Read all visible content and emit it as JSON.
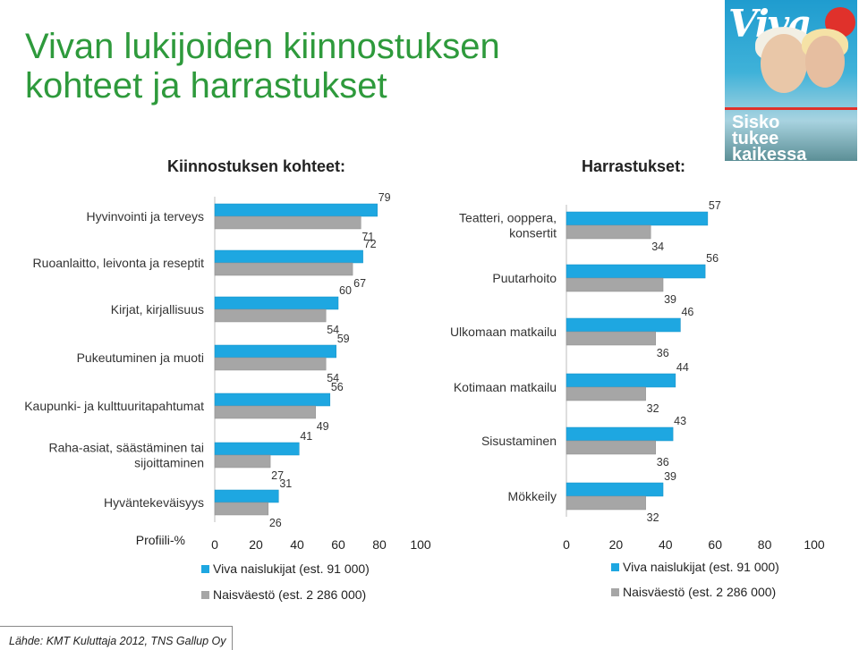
{
  "title": "Vivan lukijoiden kiinnostuksen kohteet ja harrastukset",
  "subheads": {
    "left": "Kiinnostuksen kohteet:",
    "right": "Harrastukset:"
  },
  "axis_label": "Profiili-%",
  "source": "Lähde: KMT Kuluttaja 2012, TNS Gallup Oy",
  "colors": {
    "viva": "#1ea7e1",
    "naisvaesto": "#a6a6a6",
    "title": "#2e9a3c"
  },
  "cover": {
    "masthead": "Viva",
    "headline": "Sisko tukee kaikessa"
  },
  "chart_data": [
    {
      "type": "bar",
      "orientation": "horizontal",
      "title": "Kiinnostuksen kohteet:",
      "xlabel": "Profiili-%",
      "xlim": [
        0,
        100
      ],
      "xticks": [
        0,
        20,
        40,
        60,
        80,
        100
      ],
      "categories": [
        [
          "Hyvinvointi ja terveys"
        ],
        [
          "Ruoanlaitto, leivonta ja reseptit"
        ],
        [
          "Kirjat, kirjallisuus"
        ],
        [
          "Pukeutuminen ja muoti"
        ],
        [
          "Kaupunki- ja kulttuuritapahtumat"
        ],
        [
          "Raha-asiat, säästäminen tai",
          "sijoittaminen"
        ],
        [
          "Hyväntekeväisyys"
        ]
      ],
      "series": [
        {
          "name": "Viva naislukijat (est. 91 000)",
          "values": [
            79,
            72,
            60,
            59,
            56,
            41,
            31
          ]
        },
        {
          "name": "Naisväestö (est. 2 286 000)",
          "values": [
            71,
            67,
            54,
            54,
            49,
            27,
            26
          ]
        }
      ],
      "legend": "bottom"
    },
    {
      "type": "bar",
      "orientation": "horizontal",
      "title": "Harrastukset:",
      "xlim": [
        0,
        100
      ],
      "xticks": [
        0,
        20,
        40,
        60,
        80,
        100
      ],
      "categories": [
        [
          "Teatteri, ooppera,",
          "konsertit"
        ],
        [
          "Puutarhoito"
        ],
        [
          "Ulkomaan matkailu"
        ],
        [
          "Kotimaan matkailu"
        ],
        [
          "Sisustaminen"
        ],
        [
          "Mökkeily"
        ]
      ],
      "series": [
        {
          "name": "Viva naislukijat (est. 91 000)",
          "values": [
            57,
            56,
            46,
            44,
            43,
            39
          ]
        },
        {
          "name": "Naisväestö (est. 2 286 000)",
          "values": [
            34,
            39,
            36,
            32,
            36,
            32
          ]
        }
      ],
      "legend": "bottom"
    }
  ]
}
